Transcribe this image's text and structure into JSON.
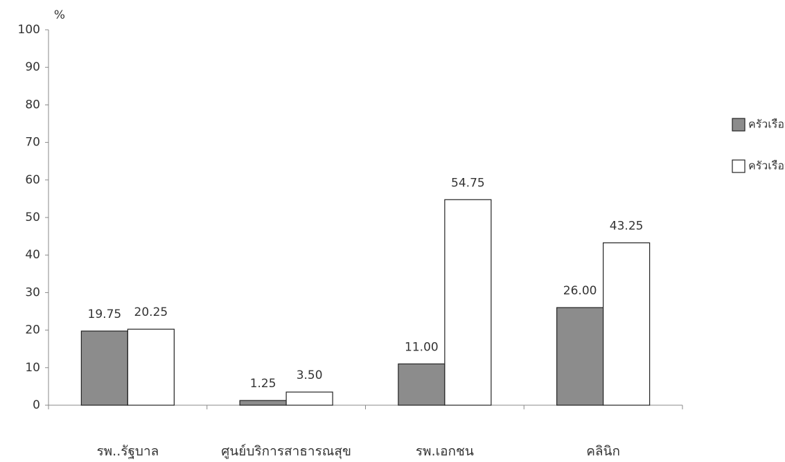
{
  "chart_data": {
    "type": "bar",
    "y_unit": "%",
    "categories": [
      "รพ..รัฐบาล",
      "ศูนย์บริการสาธารณสุข",
      "รพ.เอกชน",
      "คลินิก"
    ],
    "series": [
      {
        "name": "ครัวเรือนเกษตร",
        "color": "#8c8c8c",
        "values": [
          19.75,
          1.25,
          11,
          26
        ],
        "value_labels": [
          "19.75",
          "1.25",
          "11.00",
          "26.00"
        ]
      },
      {
        "name": "ครัวเรือนทั่วไป",
        "color": "#ffffff",
        "values": [
          20.25,
          3.5,
          54.75,
          43.25
        ],
        "value_labels": [
          "20.25",
          "3.50",
          "54.75",
          "43.25"
        ]
      }
    ],
    "ylim": [
      0,
      100
    ],
    "yticks": [
      0,
      10,
      20,
      30,
      40,
      50,
      60,
      70,
      80,
      90,
      100
    ],
    "grid": false,
    "legend": "right"
  }
}
